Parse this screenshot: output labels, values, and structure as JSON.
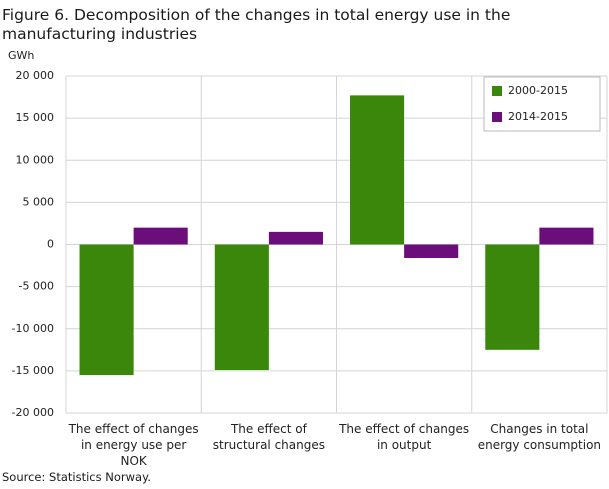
{
  "chart_data": {
    "type": "bar",
    "title": "Figure 6. Decomposition of the changes in total energy use in the manufacturing industries",
    "y_label": "GWh",
    "source": "Source: Statistics Norway.",
    "categories": [
      "The effect of changes in energy use per NOK",
      "The effect of structural changes",
      "The effect of changes in output",
      "Changes in total energy consumption"
    ],
    "series": [
      {
        "name": "2000-2015",
        "color": "#3a870b",
        "values": [
          -15500,
          -14900,
          17700,
          -12500
        ]
      },
      {
        "name": "2014-2015",
        "color": "#6b0d7b",
        "values": [
          2000,
          1500,
          -1600,
          2000
        ]
      }
    ],
    "ylim": [
      -20000,
      20000
    ],
    "yticks": [
      {
        "value": -20000,
        "label": "-20 000"
      },
      {
        "value": -15000,
        "label": "-15 000"
      },
      {
        "value": -10000,
        "label": "-10 000"
      },
      {
        "value": -5000,
        "label": "-5 000"
      },
      0,
      {
        "value": 5000,
        "label": "5 000"
      },
      {
        "value": 10000,
        "label": "10 000"
      },
      {
        "value": 15000,
        "label": "15 000"
      },
      {
        "value": 20000,
        "label": "20 000"
      }
    ],
    "grid": true,
    "legend": "upper right"
  }
}
